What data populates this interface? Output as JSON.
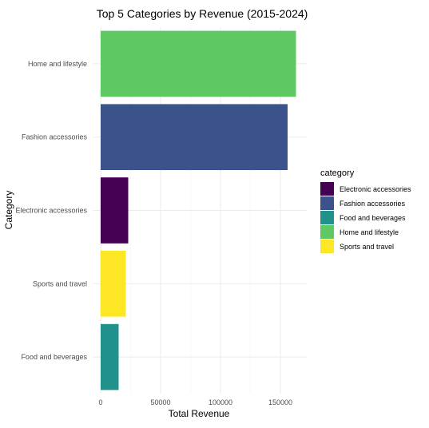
{
  "chart_data": {
    "type": "bar",
    "orientation": "horizontal",
    "title": "Top 5 Categories by Revenue (2015-2024)",
    "xlabel": "Total Revenue",
    "ylabel": "Category",
    "xlim": [
      0,
      170000
    ],
    "x_ticks": [
      0,
      50000,
      100000,
      150000
    ],
    "x_tick_labels": [
      "0",
      "50000",
      "100000",
      "150000"
    ],
    "categories": [
      "Home and lifestyle",
      "Fashion accessories",
      "Electronic accessories",
      "Sports and travel",
      "Food and beverages"
    ],
    "values": [
      163000,
      156000,
      23000,
      21000,
      15000
    ],
    "bar_colors": [
      "#5ec962",
      "#3b528b",
      "#440154",
      "#fde725",
      "#21918c"
    ],
    "grid": true,
    "legend": {
      "title": "category",
      "placement": "right",
      "entries": [
        {
          "label": "Electronic accessories",
          "color": "#440154"
        },
        {
          "label": "Fashion accessories",
          "color": "#3b528b"
        },
        {
          "label": "Food and beverages",
          "color": "#21918c"
        },
        {
          "label": "Home and lifestyle",
          "color": "#5ec962"
        },
        {
          "label": "Sports and travel",
          "color": "#fde725"
        }
      ]
    }
  }
}
